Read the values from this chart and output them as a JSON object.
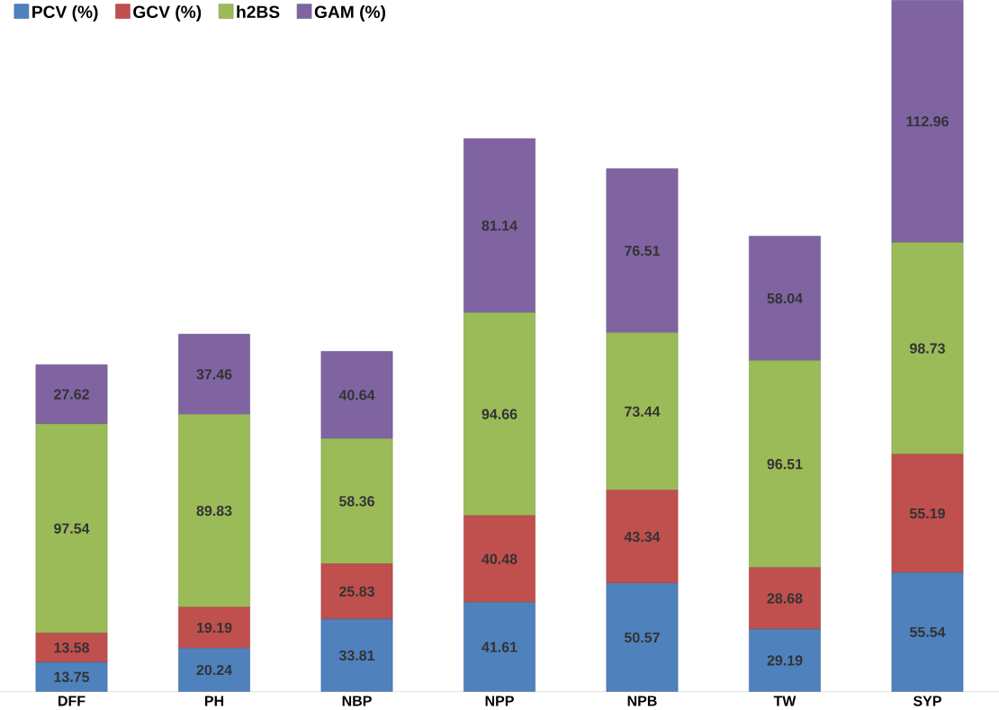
{
  "chart_data": {
    "type": "bar",
    "stacked": true,
    "data_labels": true,
    "legend": "top left",
    "categories": [
      "DFF",
      "PH",
      "NBP",
      "NPP",
      "NPB",
      "TW",
      "SYP"
    ],
    "series": [
      {
        "name": "PCV (%)",
        "color": "#4f81bd",
        "values": [
          13.75,
          20.24,
          33.81,
          41.61,
          50.57,
          29.19,
          55.54
        ]
      },
      {
        "name": "GCV (%)",
        "color": "#c0504d",
        "values": [
          13.58,
          19.19,
          25.83,
          40.48,
          43.34,
          28.68,
          55.19
        ]
      },
      {
        "name": "h2BS",
        "color": "#9bbb59",
        "values": [
          97.54,
          89.83,
          58.36,
          94.66,
          73.44,
          96.51,
          98.73
        ]
      },
      {
        "name": "GAM (%)",
        "color": "#8064a2",
        "values": [
          27.62,
          37.46,
          40.64,
          81.14,
          76.51,
          58.04,
          112.96
        ]
      }
    ]
  }
}
